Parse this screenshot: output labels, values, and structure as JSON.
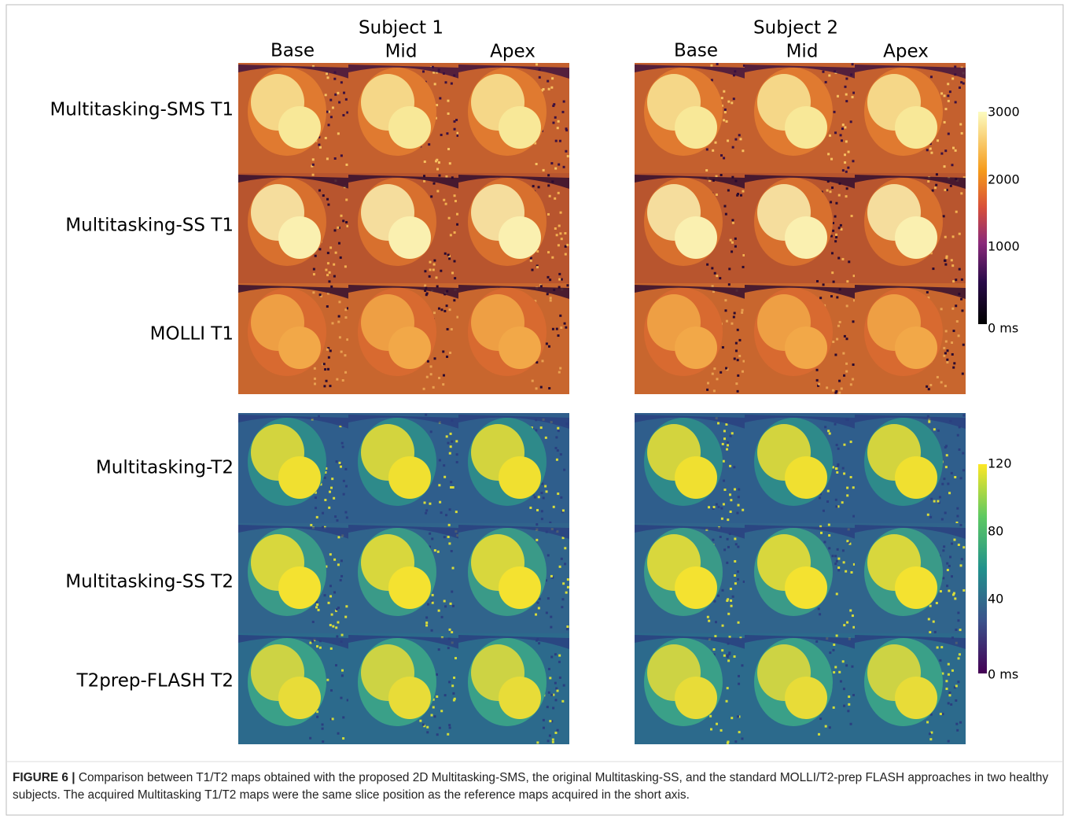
{
  "figure": {
    "subjects": [
      {
        "title": "Subject 1",
        "columns": [
          "Base",
          "Mid",
          "Apex"
        ]
      },
      {
        "title": "Subject 2",
        "columns": [
          "Base",
          "Mid",
          "Apex"
        ]
      }
    ],
    "rows": [
      "Multitasking-SMS T1",
      "Multitasking-SS T1",
      "MOLLI T1",
      "Multitasking-T2",
      "Multitasking-SS T2",
      "T2prep-FLASH T2"
    ],
    "colorbars": [
      {
        "labels": [
          "3000",
          "2000",
          "1000",
          "0 ms"
        ]
      },
      {
        "labels": [
          "120",
          "80",
          "40",
          "0 ms"
        ]
      }
    ]
  },
  "caption": {
    "label": "FIGURE 6 |",
    "text": "Comparison between T1/T2 maps obtained with the proposed 2D Multitasking-SMS, the original Multitasking-SS, and the standard MOLLI/T2-prep FLASH approaches in two healthy subjects. The acquired Multitasking T1/T2 maps were the same slice position as the reference maps acquired in the short axis."
  }
}
